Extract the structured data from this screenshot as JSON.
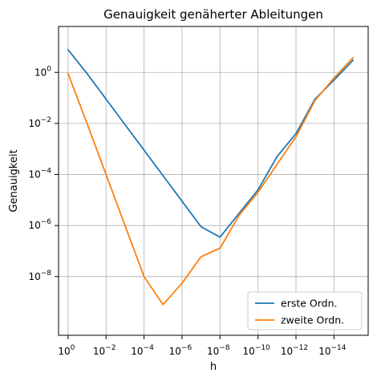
{
  "chart_data": {
    "type": "line",
    "title": "Genauigkeit genäherter Ableitungen",
    "xlabel": "h",
    "ylabel": "Genauigkeit",
    "x_scale": "log",
    "x_axis_reversed": true,
    "y_scale": "log",
    "x_exponent_range": [
      0.5,
      -15.8
    ],
    "y_exponent_range": [
      -10.3,
      1.8
    ],
    "x_ticks": [
      {
        "exp": 0,
        "base": "10",
        "sup": "0"
      },
      {
        "exp": -2,
        "base": "10",
        "sup": "−2"
      },
      {
        "exp": -4,
        "base": "10",
        "sup": "−4"
      },
      {
        "exp": -6,
        "base": "10",
        "sup": "−6"
      },
      {
        "exp": -8,
        "base": "10",
        "sup": "−8"
      },
      {
        "exp": -10,
        "base": "10",
        "sup": "−10"
      },
      {
        "exp": -12,
        "base": "10",
        "sup": "−12"
      },
      {
        "exp": -14,
        "base": "10",
        "sup": "−14"
      }
    ],
    "y_ticks": [
      {
        "exp": 0,
        "base": "10",
        "sup": "0"
      },
      {
        "exp": -2,
        "base": "10",
        "sup": "−2"
      },
      {
        "exp": -4,
        "base": "10",
        "sup": "−4"
      },
      {
        "exp": -6,
        "base": "10",
        "sup": "−6"
      },
      {
        "exp": -8,
        "base": "10",
        "sup": "−8"
      }
    ],
    "grid": true,
    "legend_position": "lower-right",
    "x": [
      1,
      0.1,
      0.01,
      0.001,
      0.0001,
      1e-05,
      1e-06,
      1e-07,
      1e-08,
      1e-09,
      1e-10,
      1e-11,
      1e-12,
      1e-13,
      1e-14,
      1e-15
    ],
    "series": [
      {
        "name": "erste Ordn.",
        "color": "#1f77b4",
        "values": [
          7.8,
          0.9,
          0.09,
          0.009,
          0.0009,
          9e-05,
          9e-06,
          9e-07,
          3.5e-07,
          3e-06,
          2.5e-05,
          0.0005,
          0.004,
          0.09,
          0.5,
          3.0
        ]
      },
      {
        "name": "zweite Ordn.",
        "color": "#ff7f0e",
        "values": [
          0.9,
          0.01,
          0.0001,
          1e-06,
          1e-08,
          8e-10,
          5.5e-09,
          6e-08,
          1.3e-07,
          2.5e-06,
          2e-05,
          0.00025,
          0.003,
          0.08,
          0.6,
          3.8
        ]
      }
    ]
  }
}
